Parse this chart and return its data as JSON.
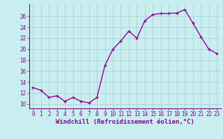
{
  "x": [
    0,
    1,
    2,
    3,
    4,
    5,
    6,
    7,
    8,
    9,
    10,
    11,
    12,
    13,
    14,
    15,
    16,
    17,
    18,
    19,
    20,
    21,
    22,
    23
  ],
  "y": [
    13.0,
    12.5,
    11.2,
    11.5,
    10.5,
    11.2,
    10.5,
    10.2,
    11.2,
    17.0,
    20.0,
    21.5,
    23.3,
    22.0,
    25.2,
    26.3,
    26.5,
    26.5,
    26.6,
    27.2,
    24.8,
    22.3,
    20.0,
    19.2
  ],
  "line_color": "#990099",
  "marker": "+",
  "bg_color": "#c8eef0",
  "grid_color": "#aacccc",
  "xlabel": "Windchill (Refroidissement éolien,°C)",
  "ylabel_ticks": [
    10,
    12,
    14,
    16,
    18,
    20,
    22,
    24,
    26
  ],
  "ylim": [
    9.2,
    28.2
  ],
  "xlim": [
    -0.5,
    23.5
  ],
  "line_width": 1.0,
  "marker_size": 3,
  "tick_color": "#880088",
  "label_color": "#880088",
  "axis_color": "#880088",
  "tick_fontsize": 5.5,
  "label_fontsize": 6.5
}
